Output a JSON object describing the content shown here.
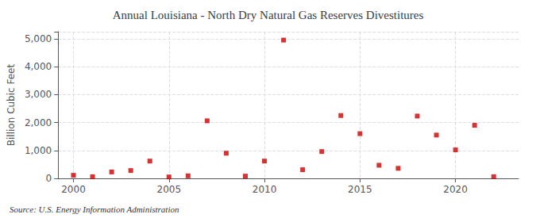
{
  "chart_data": {
    "type": "scatter",
    "title": "Annual Louisiana - North Dry Natural Gas Reserves Divestitures",
    "ylabel": "Billion Cubic Feet",
    "source": "Source: U.S. Energy Information Administration",
    "x": [
      2000,
      2001,
      2002,
      2003,
      2004,
      2005,
      2006,
      2007,
      2008,
      2009,
      2010,
      2011,
      2012,
      2013,
      2014,
      2015,
      2016,
      2017,
      2018,
      2019,
      2020,
      2021,
      2022
    ],
    "values": [
      110,
      60,
      230,
      280,
      620,
      50,
      90,
      2060,
      900,
      80,
      620,
      4950,
      310,
      960,
      2250,
      1600,
      470,
      360,
      2230,
      1550,
      1020,
      1900,
      60
    ],
    "color": "#cc0000",
    "marker": "square",
    "xlim": [
      1999.2,
      2023.3
    ],
    "xticks": [
      2000,
      2005,
      2010,
      2015,
      2020
    ],
    "ylim": [
      0,
      5250
    ],
    "yticks": [
      0,
      {
        "value": 1000,
        "label": "1,000"
      },
      {
        "value": 2000,
        "label": "2,000"
      },
      {
        "value": 3000,
        "label": "3,000"
      },
      {
        "value": 4000,
        "label": "4,000"
      },
      {
        "value": 5000,
        "label": "5,000"
      }
    ],
    "grid": true
  }
}
